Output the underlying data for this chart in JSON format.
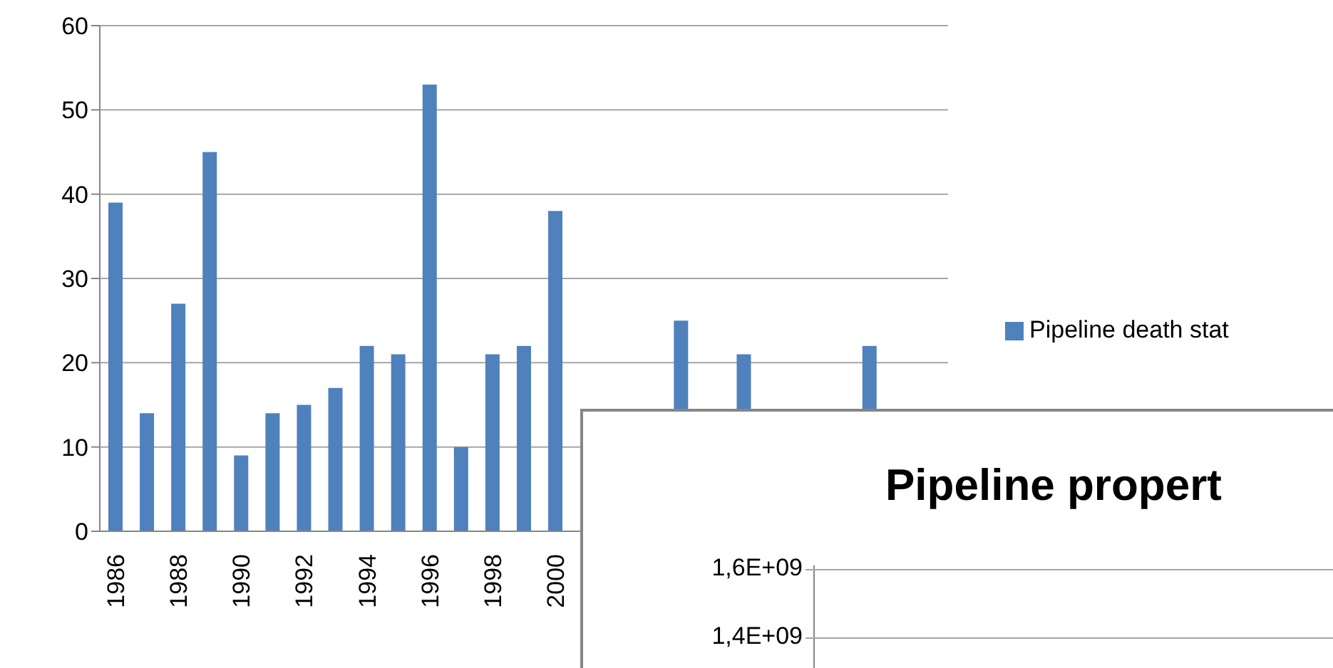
{
  "chart_data": [
    {
      "type": "bar",
      "categories": [
        "1986",
        null,
        "1988",
        null,
        "1990",
        null,
        "1992",
        null,
        "1994",
        null,
        "1996",
        null,
        "1998",
        null,
        "2000",
        null,
        null,
        null,
        null,
        null,
        null,
        null,
        null,
        null,
        null,
        null,
        null
      ],
      "series": [
        {
          "name": "Pipeline death stat",
          "color": "#4f81bd",
          "values": [
            39,
            14,
            27,
            45,
            9,
            14,
            15,
            17,
            22,
            21,
            53,
            10,
            21,
            22,
            38,
            null,
            null,
            null,
            25,
            null,
            21,
            null,
            null,
            null,
            22,
            null,
            null
          ]
        }
      ],
      "ylim": [
        0,
        60
      ],
      "yticks": [
        0,
        10,
        20,
        30,
        40,
        50,
        60
      ],
      "grid": "y",
      "legend": "right"
    },
    {
      "type": "other",
      "title": "Pipeline propert",
      "annotations": [
        "1,6E+09",
        "1,4E+09"
      ]
    }
  ]
}
